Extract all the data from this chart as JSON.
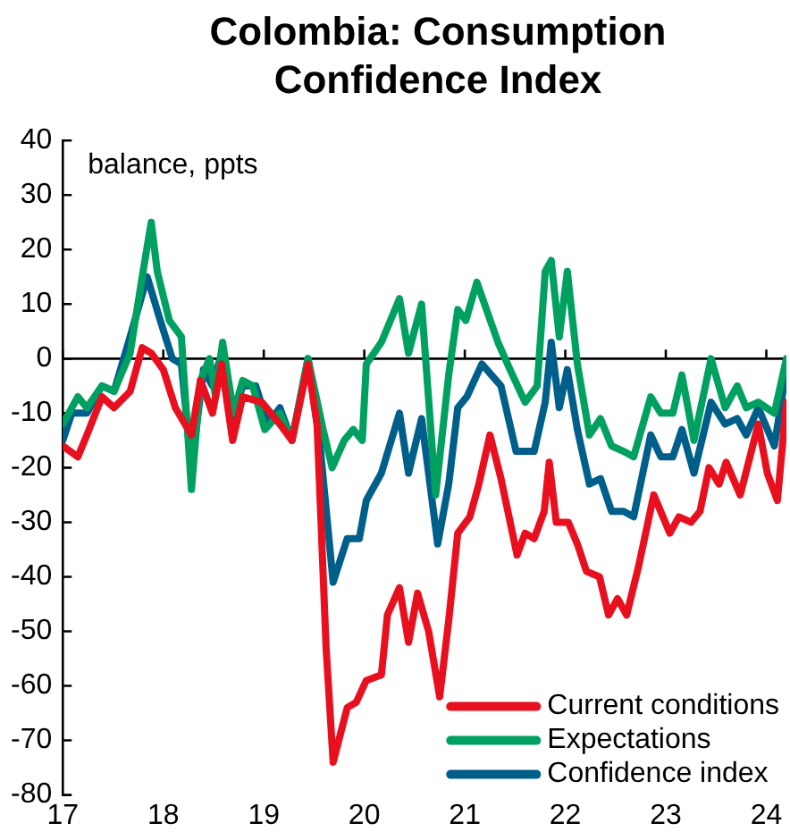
{
  "chart_data": {
    "type": "line",
    "title": "Colombia: Consumption Confidence Index",
    "annotations": [
      "balance, ppts"
    ],
    "xlim": [
      17,
      24.2
    ],
    "xticks": [
      17,
      18,
      19,
      20,
      21,
      22,
      23,
      24
    ],
    "ylim": [
      -80,
      40
    ],
    "yticks": [
      -80,
      -70,
      -60,
      -50,
      -40,
      -30,
      -20,
      -10,
      0,
      10,
      20,
      30,
      40
    ],
    "legend": "bottom right",
    "ref_lines": [
      {
        "axis": "y",
        "value": 0,
        "color": "#000000"
      }
    ],
    "grid": false,
    "marker": "none",
    "line_style": "solid",
    "series": [
      {
        "name": "Current conditions",
        "color": "#e8101e",
        "x": [
          17,
          17.15,
          17.24,
          17.39,
          17.51,
          17.67,
          17.79,
          17.88,
          18,
          18.12,
          18.28,
          18.37,
          18.49,
          18.58,
          18.69,
          18.79,
          18.98,
          19.16,
          19.28,
          19.44,
          19.53,
          19.62,
          19.69,
          19.83,
          19.92,
          20.02,
          20.17,
          20.23,
          20.35,
          20.44,
          20.53,
          20.64,
          20.75,
          20.84,
          20.93,
          21.05,
          21.14,
          21.25,
          21.36,
          21.52,
          21.6,
          21.69,
          21.79,
          21.84,
          21.91,
          22.03,
          22.12,
          22.21,
          22.34,
          22.43,
          22.52,
          22.61,
          22.73,
          22.88,
          23.04,
          23.13,
          23.25,
          23.34,
          23.43,
          23.53,
          23.6,
          23.74,
          23.92,
          24.01,
          24.11,
          24.2
        ],
        "values": [
          -16,
          -18,
          -14,
          -7,
          -9,
          -6,
          2,
          1,
          -2,
          -9,
          -14,
          -4,
          -10,
          -1,
          -15,
          -7,
          -8,
          -12,
          -15,
          -1,
          -12,
          -53,
          -74,
          -64,
          -63,
          -59,
          -58,
          -47,
          -42,
          -52,
          -43,
          -50,
          -62,
          -48,
          -32,
          -29,
          -23,
          -14,
          -22,
          -36,
          -32,
          -33,
          -28,
          -19,
          -30,
          -30,
          -34,
          -39,
          -40,
          -47,
          -44,
          -47,
          -38,
          -25,
          -32,
          -29,
          -30,
          -28,
          -20,
          -23,
          -19,
          -25,
          -12,
          -21,
          -26,
          -8
        ]
      },
      {
        "name": "Expectations",
        "color": "#00a060",
        "x": [
          17,
          17.15,
          17.24,
          17.39,
          17.51,
          17.67,
          17.79,
          17.88,
          17.94,
          18.06,
          18.18,
          18.28,
          18.37,
          18.46,
          18.52,
          18.59,
          18.7,
          18.79,
          18.89,
          19.01,
          19.16,
          19.28,
          19.44,
          19.59,
          19.68,
          19.8,
          19.89,
          19.98,
          20.02,
          20.17,
          20.35,
          20.44,
          20.57,
          20.71,
          20.84,
          20.93,
          21.01,
          21.12,
          21.33,
          21.45,
          21.6,
          21.72,
          21.8,
          21.86,
          21.94,
          22.02,
          22.12,
          22.24,
          22.35,
          22.46,
          22.58,
          22.68,
          22.85,
          22.95,
          23.07,
          23.16,
          23.28,
          23.45,
          23.59,
          23.71,
          23.8,
          23.92,
          24.08,
          24.2
        ],
        "values": [
          -12,
          -7,
          -9,
          -5,
          -6,
          1,
          15,
          25,
          16,
          7,
          4,
          -24,
          -4,
          0,
          -7,
          3,
          -10,
          -4,
          -5,
          -13,
          -10,
          -15,
          0,
          -13,
          -20,
          -15,
          -13,
          -15,
          -1,
          3,
          11,
          1,
          10,
          -25,
          -3,
          9,
          7,
          14,
          3,
          -2,
          -8,
          -5,
          16,
          18,
          4,
          16,
          -1,
          -14,
          -11,
          -16,
          -17,
          -18,
          -7,
          -10,
          -10,
          -3,
          -15,
          0,
          -9,
          -5,
          -9,
          -8,
          -10,
          0
        ]
      },
      {
        "name": "Confidence index",
        "color": "#005f8a",
        "x": [
          17,
          17.09,
          17.24,
          17.39,
          17.51,
          17.67,
          17.84,
          17.97,
          18.09,
          18.18,
          18.28,
          18.4,
          18.49,
          18.58,
          18.67,
          18.79,
          18.92,
          19.04,
          19.16,
          19.28,
          19.44,
          19.56,
          19.69,
          19.83,
          19.95,
          20.02,
          20.17,
          20.35,
          20.44,
          20.57,
          20.73,
          20.84,
          20.93,
          21.02,
          21.17,
          21.36,
          21.51,
          21.69,
          21.8,
          21.86,
          21.94,
          22.02,
          22.12,
          22.24,
          22.35,
          22.46,
          22.58,
          22.68,
          22.85,
          22.95,
          23.07,
          23.16,
          23.28,
          23.45,
          23.59,
          23.71,
          23.8,
          23.92,
          24.08,
          24.2
        ],
        "values": [
          -15,
          -10,
          -10,
          -5,
          -6,
          4,
          15,
          7,
          0,
          -1,
          -20,
          -2,
          -5,
          1,
          -12,
          -5,
          -5,
          -12,
          -9,
          -15,
          0,
          -16,
          -41,
          -33,
          -33,
          -26,
          -21,
          -10,
          -21,
          -11,
          -34,
          -23,
          -9,
          -7,
          -1,
          -5,
          -17,
          -17,
          -8,
          3,
          -9,
          -2,
          -13,
          -23,
          -22,
          -28,
          -28,
          -29,
          -14,
          -18,
          -18,
          -13,
          -21,
          -8,
          -12,
          -11,
          -14,
          -9,
          -16,
          -2
        ]
      }
    ]
  }
}
